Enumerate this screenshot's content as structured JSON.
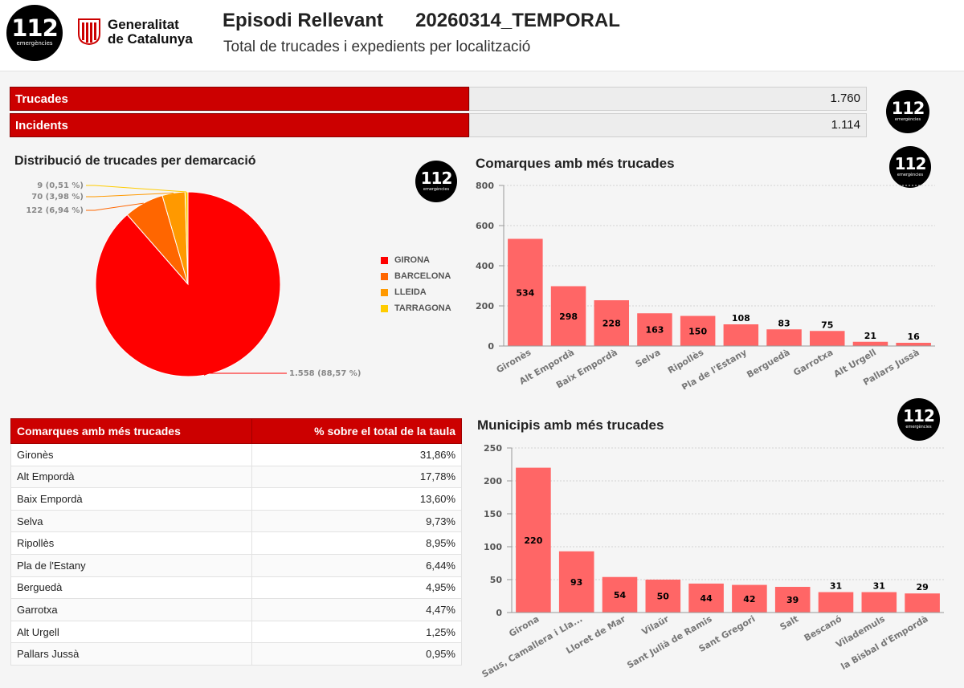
{
  "logo": {
    "number": "112",
    "subtitle": "emergències"
  },
  "header": {
    "org_line1": "Generalitat",
    "org_line2": "de Catalunya",
    "title": "Episodi Rellevant",
    "episode_code": "20260314_TEMPORAL",
    "subtitle": "Total de trucades i expedients per localització"
  },
  "kpis": [
    {
      "label": "Trucades",
      "value": "1.760"
    },
    {
      "label": "Incidents",
      "value": "1.114"
    }
  ],
  "colors": {
    "accent": "#cc0000",
    "bar": "#ff6666",
    "girona": "#ff0000",
    "barcelona": "#ff6600",
    "lleida": "#ff9900",
    "tarragona": "#ffcc00"
  },
  "chart_data": [
    {
      "type": "pie",
      "title": "Distribució de trucades per demarcació",
      "legend": "right",
      "slices": [
        {
          "name": "GIRONA",
          "value": 1558,
          "label": "1.558 (88,57 %)",
          "color": "#ff0000"
        },
        {
          "name": "BARCELONA",
          "value": 122,
          "label": "122 (6,94 %)",
          "color": "#ff6600"
        },
        {
          "name": "LLEIDA",
          "value": 70,
          "label": "70 (3,98 %)",
          "color": "#ff9900"
        },
        {
          "name": "TARRAGONA",
          "value": 9,
          "label": "9 (0,51 %)",
          "color": "#ffcc00"
        }
      ]
    },
    {
      "type": "bar",
      "title": "Comarques amb més trucades",
      "categories": [
        "Gironès",
        "Alt Empordà",
        "Baix Empordà",
        "Selva",
        "Ripollès",
        "Pla de l'Estany",
        "Berguedà",
        "Garrotxa",
        "Alt Urgell",
        "Pallars Jussà"
      ],
      "values": [
        534,
        298,
        228,
        163,
        150,
        108,
        83,
        75,
        21,
        16
      ],
      "ylim": [
        0,
        800
      ],
      "yticks": [
        0,
        200,
        400,
        600,
        800
      ],
      "grid": true
    },
    {
      "type": "bar",
      "title": "Municipis amb més trucades",
      "categories": [
        "Girona",
        "Saus, Camallera i Lla...",
        "Lloret de Mar",
        "Vilaür",
        "Sant Julià de Ramis",
        "Sant Gregori",
        "Salt",
        "Bescanó",
        "Vilademuls",
        "la Bisbal d'Empordà"
      ],
      "values": [
        220,
        93,
        54,
        50,
        44,
        42,
        39,
        31,
        31,
        29
      ],
      "ylim": [
        0,
        250
      ],
      "yticks": [
        0,
        50,
        100,
        150,
        200,
        250
      ],
      "grid": true
    },
    {
      "type": "table",
      "columns": [
        "Comarques amb més trucades",
        "% sobre el total de la taula"
      ],
      "rows": [
        [
          "Gironès",
          "31,86%"
        ],
        [
          "Alt Empordà",
          "17,78%"
        ],
        [
          "Baix Empordà",
          "13,60%"
        ],
        [
          "Selva",
          "9,73%"
        ],
        [
          "Ripollès",
          "8,95%"
        ],
        [
          "Pla de l'Estany",
          "6,44%"
        ],
        [
          "Berguedà",
          "4,95%"
        ],
        [
          "Garrotxa",
          "4,47%"
        ],
        [
          "Alt Urgell",
          "1,25%"
        ],
        [
          "Pallars Jussà",
          "0,95%"
        ]
      ]
    }
  ]
}
